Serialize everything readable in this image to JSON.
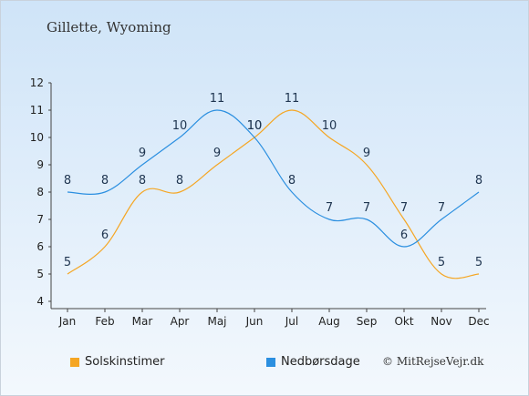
{
  "chart_data": {
    "type": "line",
    "title": "Gillette, Wyoming",
    "categories": [
      "Jan",
      "Feb",
      "Mar",
      "Apr",
      "Maj",
      "Jun",
      "Jul",
      "Aug",
      "Sep",
      "Okt",
      "Nov",
      "Dec"
    ],
    "series": [
      {
        "name": "Solskinstimer",
        "color": "#f5a623",
        "values": [
          5,
          6,
          8,
          8,
          9,
          10,
          11,
          10,
          9,
          7,
          5,
          5
        ]
      },
      {
        "name": "Nedbørsdage",
        "color": "#2b8fe0",
        "values": [
          8,
          8,
          9,
          10,
          11,
          10,
          8,
          7,
          7,
          6,
          7,
          8
        ]
      }
    ],
    "ylim": [
      4,
      12
    ],
    "yticks": [
      "4",
      "5",
      "6",
      "7",
      "8",
      "9",
      "10",
      "11",
      "12"
    ],
    "grid": false,
    "legend_position": "bottom"
  },
  "credit": "© MitRejseVejr.dk"
}
